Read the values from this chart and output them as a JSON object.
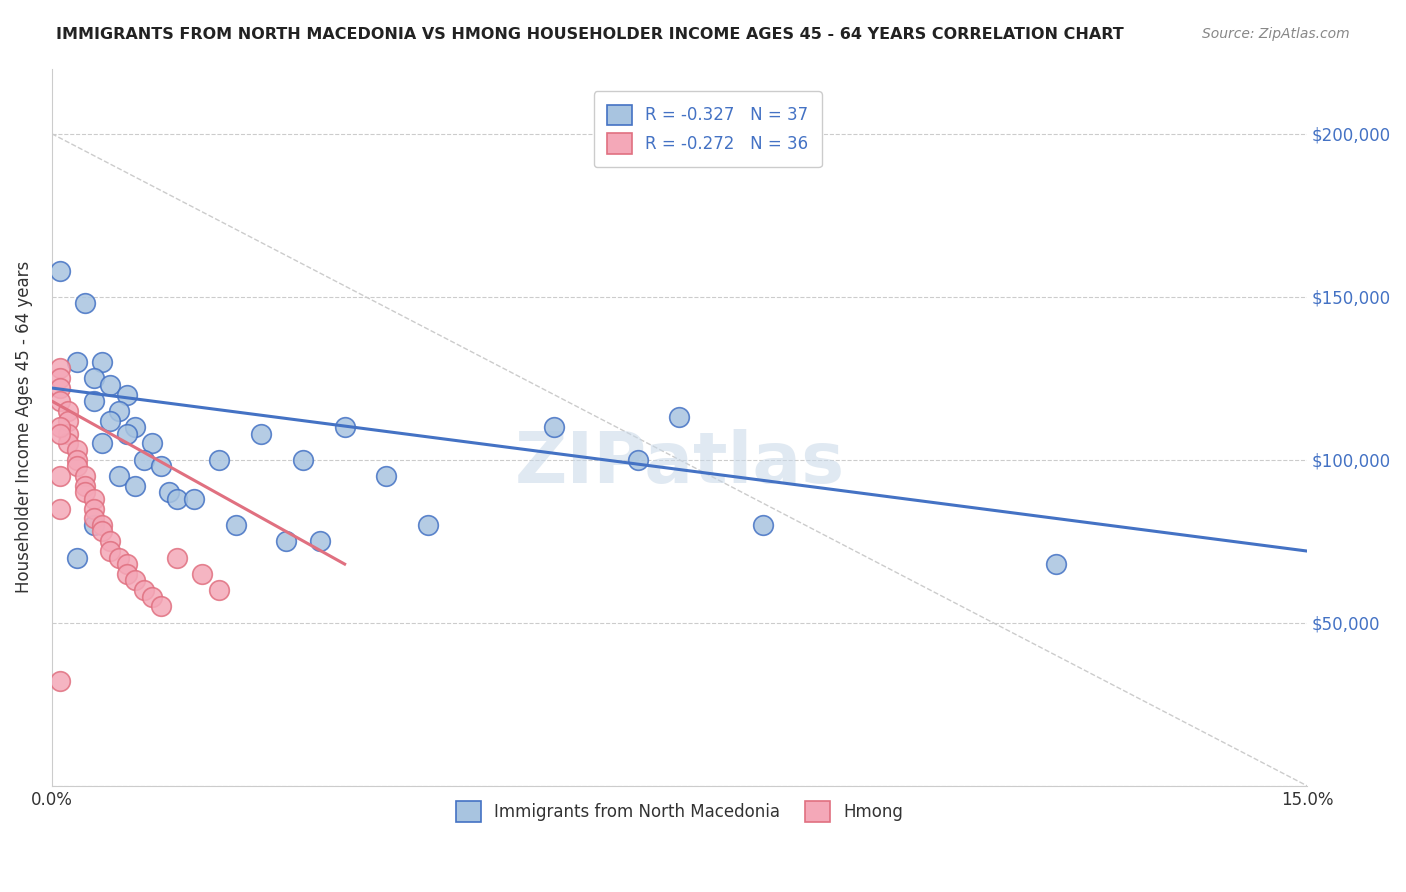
{
  "title": "IMMIGRANTS FROM NORTH MACEDONIA VS HMONG HOUSEHOLDER INCOME AGES 45 - 64 YEARS CORRELATION CHART",
  "source": "Source: ZipAtlas.com",
  "xlabel_bottom": "",
  "ylabel": "Householder Income Ages 45 - 64 years",
  "x_min": 0.0,
  "x_max": 0.15,
  "y_min": 0,
  "y_max": 220000,
  "x_ticks": [
    0.0,
    0.03,
    0.06,
    0.09,
    0.12,
    0.15
  ],
  "x_tick_labels": [
    "0.0%",
    "",
    "",
    "",
    "",
    "15.0%"
  ],
  "y_ticks": [
    0,
    50000,
    100000,
    150000,
    200000
  ],
  "y_tick_labels": [
    "",
    "$50,000",
    "$100,000",
    "$150,000",
    "$200,000"
  ],
  "legend_labels": [
    "Immigrants from North Macedonia",
    "Hmong"
  ],
  "legend_R": [
    "R = -0.327",
    "R = -0.272"
  ],
  "legend_N": [
    "N = 37",
    "N = 36"
  ],
  "color_blue": "#a8c4e0",
  "color_pink": "#f4a8b8",
  "line_color_blue": "#4472c4",
  "line_color_pink": "#e07080",
  "watermark": "ZIPatlas",
  "north_macedonia_points": [
    [
      0.001,
      158000
    ],
    [
      0.004,
      148000
    ],
    [
      0.003,
      130000
    ],
    [
      0.006,
      130000
    ],
    [
      0.005,
      125000
    ],
    [
      0.007,
      123000
    ],
    [
      0.009,
      120000
    ],
    [
      0.005,
      118000
    ],
    [
      0.008,
      115000
    ],
    [
      0.007,
      112000
    ],
    [
      0.01,
      110000
    ],
    [
      0.009,
      108000
    ],
    [
      0.006,
      105000
    ],
    [
      0.012,
      105000
    ],
    [
      0.011,
      100000
    ],
    [
      0.013,
      98000
    ],
    [
      0.008,
      95000
    ],
    [
      0.01,
      92000
    ],
    [
      0.014,
      90000
    ],
    [
      0.015,
      88000
    ],
    [
      0.017,
      88000
    ],
    [
      0.02,
      100000
    ],
    [
      0.025,
      108000
    ],
    [
      0.03,
      100000
    ],
    [
      0.035,
      110000
    ],
    [
      0.04,
      95000
    ],
    [
      0.045,
      80000
    ],
    [
      0.06,
      110000
    ],
    [
      0.07,
      100000
    ],
    [
      0.075,
      113000
    ],
    [
      0.085,
      80000
    ],
    [
      0.005,
      80000
    ],
    [
      0.022,
      80000
    ],
    [
      0.028,
      75000
    ],
    [
      0.032,
      75000
    ],
    [
      0.12,
      68000
    ],
    [
      0.003,
      70000
    ]
  ],
  "hmong_points": [
    [
      0.001,
      128000
    ],
    [
      0.001,
      125000
    ],
    [
      0.001,
      122000
    ],
    [
      0.001,
      118000
    ],
    [
      0.002,
      115000
    ],
    [
      0.002,
      112000
    ],
    [
      0.002,
      108000
    ],
    [
      0.002,
      105000
    ],
    [
      0.003,
      103000
    ],
    [
      0.003,
      100000
    ],
    [
      0.003,
      98000
    ],
    [
      0.004,
      95000
    ],
    [
      0.004,
      92000
    ],
    [
      0.004,
      90000
    ],
    [
      0.005,
      88000
    ],
    [
      0.005,
      85000
    ],
    [
      0.005,
      82000
    ],
    [
      0.006,
      80000
    ],
    [
      0.006,
      78000
    ],
    [
      0.007,
      75000
    ],
    [
      0.007,
      72000
    ],
    [
      0.008,
      70000
    ],
    [
      0.009,
      68000
    ],
    [
      0.009,
      65000
    ],
    [
      0.01,
      63000
    ],
    [
      0.011,
      60000
    ],
    [
      0.012,
      58000
    ],
    [
      0.013,
      55000
    ],
    [
      0.015,
      70000
    ],
    [
      0.018,
      65000
    ],
    [
      0.02,
      60000
    ],
    [
      0.001,
      32000
    ],
    [
      0.001,
      110000
    ],
    [
      0.001,
      108000
    ],
    [
      0.001,
      95000
    ],
    [
      0.001,
      85000
    ]
  ],
  "blue_trendline": [
    [
      0.0,
      122000
    ],
    [
      0.15,
      72000
    ]
  ],
  "pink_trendline": [
    [
      0.0,
      118000
    ],
    [
      0.035,
      68000
    ]
  ]
}
